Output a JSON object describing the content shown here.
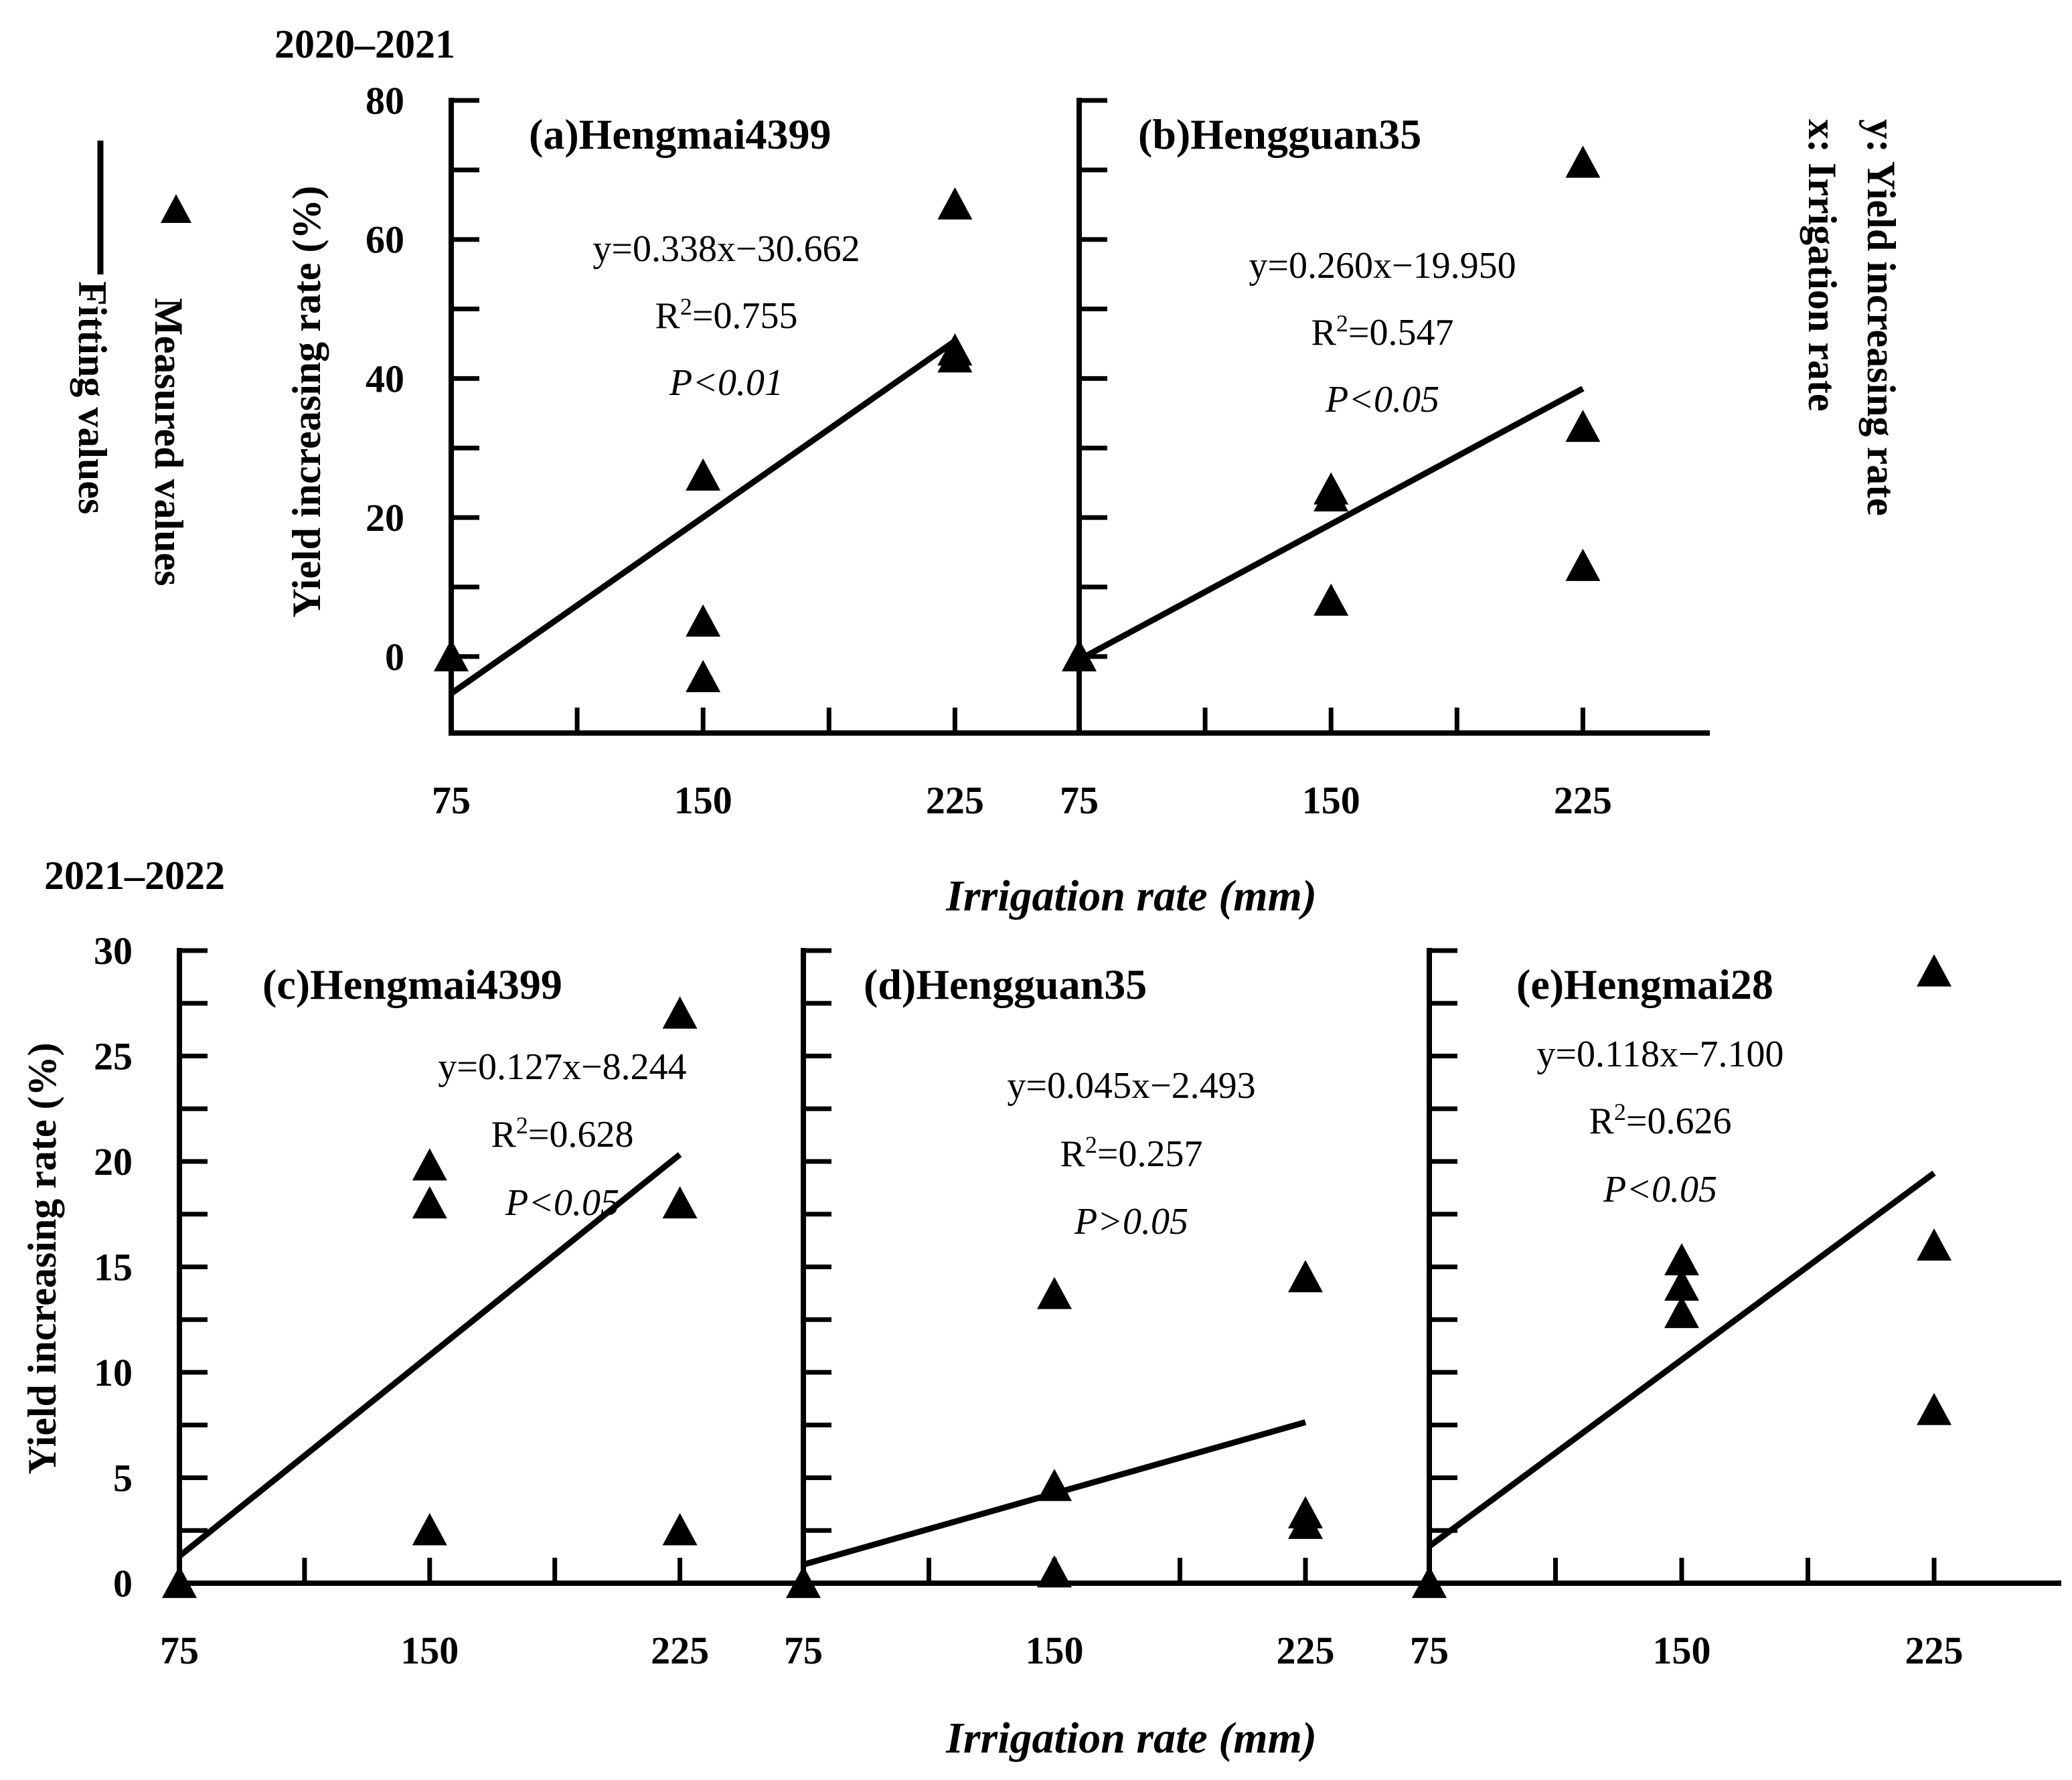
{
  "figure": {
    "period_top": "2020–2021",
    "period_bottom": "2021–2022",
    "ylabel": "Yield increasing rate (%)",
    "xlabel": "Irrigation rate (mm)",
    "legend": {
      "measured": "Measured values",
      "fitting": "Fitting values",
      "y_def": "y: Yield increasing rate",
      "x_def": "x: Irrigation rate"
    }
  },
  "chart_data": [
    {
      "type": "scatter",
      "panel": "a",
      "title": "(a)Hengmai4399",
      "xticks": [
        75,
        150,
        225
      ],
      "yticks": [
        0,
        20,
        40,
        60,
        80
      ],
      "xlim": [
        75,
        262
      ],
      "ylim": [
        -11,
        80
      ],
      "series": [
        {
          "name": "Measured values",
          "x": [
            75,
            150,
            150,
            150,
            225,
            225,
            225
          ],
          "y": [
            0,
            26,
            5,
            -3,
            65,
            44,
            43
          ]
        },
        {
          "name": "Fitting values",
          "line": {
            "x": [
              75,
              225
            ],
            "slope": 0.338,
            "intercept": -30.662
          }
        }
      ],
      "annotation": {
        "equation": "y=0.338x−30.662",
        "r2_prefix": "R",
        "r2_sup": "2",
        "r2_value": "=0.755",
        "p": "P<0.01"
      }
    },
    {
      "type": "scatter",
      "panel": "b",
      "title": "(b)Hengguan35",
      "xticks": [
        75,
        150,
        225
      ],
      "yticks": [
        0,
        20,
        40,
        60,
        80
      ],
      "xlim": [
        75,
        262
      ],
      "ylim": [
        -11,
        80
      ],
      "series": [
        {
          "name": "Measured values",
          "x": [
            75,
            150,
            150,
            150,
            225,
            225,
            225
          ],
          "y": [
            0,
            24,
            23,
            8,
            71,
            33,
            13
          ]
        },
        {
          "name": "Fitting values",
          "line": {
            "x": [
              75,
              225
            ],
            "slope": 0.26,
            "intercept": -19.95
          }
        }
      ],
      "annotation": {
        "equation": "y=0.260x−19.950",
        "r2_prefix": "R",
        "r2_sup": "2",
        "r2_value": "=0.547",
        "p": "P<0.05"
      }
    },
    {
      "type": "scatter",
      "panel": "c",
      "title": "(c)Hengmai4399",
      "xticks": [
        75,
        150,
        225
      ],
      "yticks": [
        0,
        5,
        10,
        15,
        20,
        25,
        30
      ],
      "xlim": [
        75,
        262
      ],
      "ylim": [
        0,
        30
      ],
      "series": [
        {
          "name": "Measured values",
          "x": [
            75,
            150,
            150,
            150,
            225,
            225,
            225
          ],
          "y": [
            0,
            19.8,
            18,
            2.5,
            27,
            18,
            2.5
          ]
        },
        {
          "name": "Fitting values",
          "line": {
            "x": [
              75,
              225
            ],
            "slope": 0.127,
            "intercept": -8.244
          }
        }
      ],
      "annotation": {
        "equation": "y=0.127x−8.244",
        "r2_prefix": "R",
        "r2_sup": "2",
        "r2_value": "=0.628",
        "p": "P<0.05"
      }
    },
    {
      "type": "scatter",
      "panel": "d",
      "title": "(d)Hengguan35",
      "xticks": [
        75,
        150,
        225
      ],
      "yticks": [
        0,
        5,
        10,
        15,
        20,
        25,
        30
      ],
      "xlim": [
        75,
        262
      ],
      "ylim": [
        0,
        30
      ],
      "series": [
        {
          "name": "Measured values",
          "x": [
            75,
            150,
            150,
            150,
            225,
            225,
            225
          ],
          "y": [
            0,
            13.7,
            4.6,
            0.5,
            14.5,
            3.3,
            2.8
          ]
        },
        {
          "name": "Fitting values",
          "line": {
            "x": [
              75,
              225
            ],
            "slope": 0.045,
            "intercept": -2.493
          }
        }
      ],
      "annotation": {
        "equation": "y=0.045x−2.493",
        "r2_prefix": "R",
        "r2_sup": "2",
        "r2_value": "=0.257",
        "p": "P>0.05"
      }
    },
    {
      "type": "scatter",
      "panel": "e",
      "title": "(e)Hengmai28",
      "xticks": [
        75,
        150,
        225
      ],
      "yticks": [
        0,
        5,
        10,
        15,
        20,
        25,
        30
      ],
      "xlim": [
        75,
        262
      ],
      "ylim": [
        0,
        30
      ],
      "series": [
        {
          "name": "Measured values",
          "x": [
            75,
            150,
            150,
            150,
            225,
            225,
            225
          ],
          "y": [
            0,
            15.3,
            14.1,
            12.8,
            29,
            16,
            8.2
          ]
        },
        {
          "name": "Fitting values",
          "line": {
            "x": [
              75,
              225
            ],
            "slope": 0.118,
            "intercept": -7.1
          }
        }
      ],
      "annotation": {
        "equation": "y=0.118x−7.100",
        "r2_prefix": "R",
        "r2_sup": "2",
        "r2_value": "=0.626",
        "p": "P<0.05"
      }
    }
  ]
}
